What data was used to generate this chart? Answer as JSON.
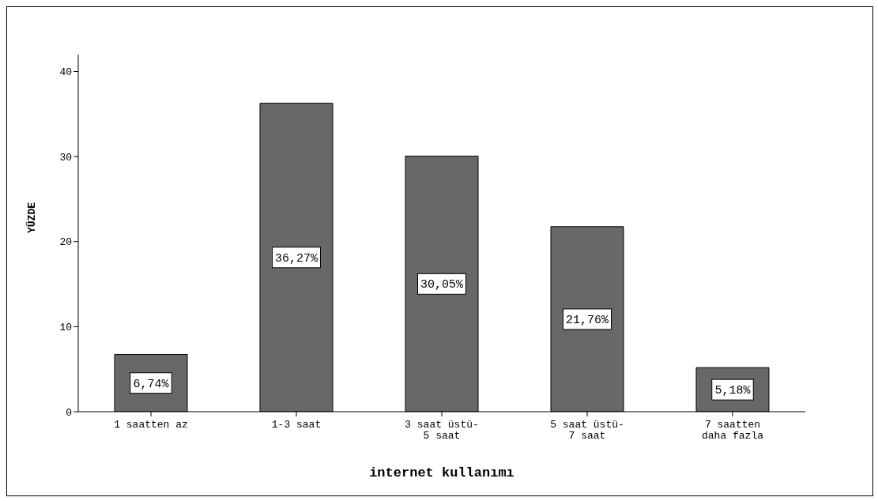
{
  "chart_data": {
    "type": "bar",
    "xlabel": "internet kullanımı",
    "ylabel": "YÜZDE",
    "categories": [
      "1 saatten az",
      "1-3 saat",
      "3 saat üstü-5 saat",
      "5 saat üstü-7 saat",
      "7 saatten daha fazla"
    ],
    "values": [
      6.74,
      36.27,
      30.05,
      21.76,
      5.18
    ],
    "value_labels": [
      "6,74%",
      "36,27%",
      "30,05%",
      "21,76%",
      "5,18%"
    ],
    "color": "#686868",
    "ylim": [
      0,
      42
    ],
    "yticks": [
      0,
      10,
      20,
      30,
      40
    ]
  }
}
